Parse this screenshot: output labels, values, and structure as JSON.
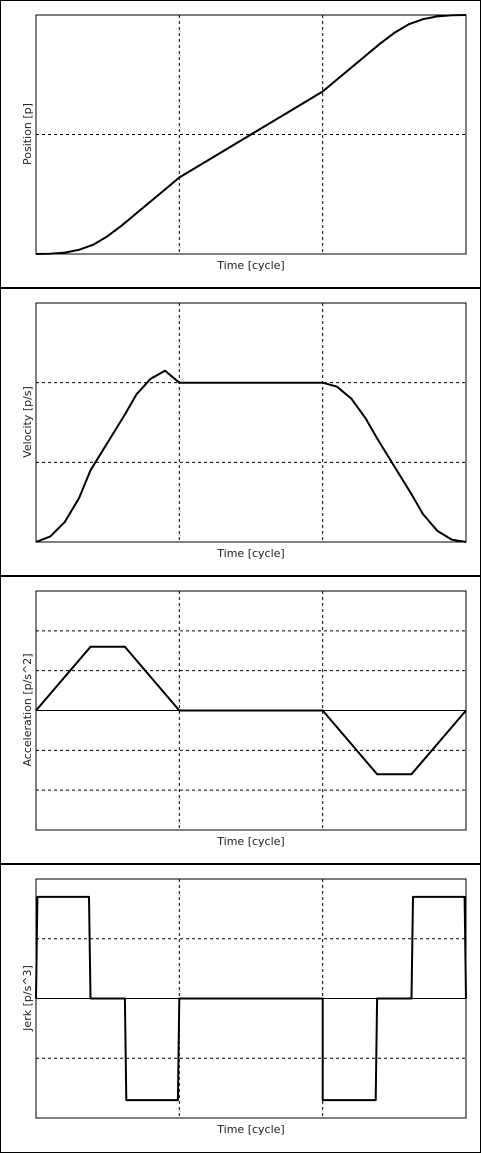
{
  "charts": [
    {
      "id": "position",
      "ylabel": "Position [p]",
      "xlabel": "Time [cycle]"
    },
    {
      "id": "velocity",
      "ylabel": "Velocity [p/s]",
      "xlabel": "Time [cycle]"
    },
    {
      "id": "acceleration",
      "ylabel": "Acceleration [p/s^2]",
      "xlabel": "Time [cycle]"
    },
    {
      "id": "jerk",
      "ylabel": "Jerk [p/s^3]",
      "xlabel": "Time [cycle]"
    }
  ],
  "chart_data": [
    {
      "type": "line",
      "xlabel": "Time [cycle]",
      "ylabel": "Position [p]",
      "xlim": [
        0,
        3
      ],
      "ylim": [
        0,
        2
      ],
      "grid": true,
      "series": [
        {
          "values": [
            [
              0,
              0
            ],
            [
              0.1,
              0.002
            ],
            [
              0.2,
              0.012
            ],
            [
              0.3,
              0.035
            ],
            [
              0.4,
              0.078
            ],
            [
              0.5,
              0.15
            ],
            [
              0.6,
              0.24
            ],
            [
              0.7,
              0.34
            ],
            [
              0.8,
              0.44
            ],
            [
              0.9,
              0.54
            ],
            [
              1.0,
              0.64
            ],
            [
              1.5,
              1.0
            ],
            [
              2.0,
              1.36
            ],
            [
              2.1,
              1.46
            ],
            [
              2.2,
              1.56
            ],
            [
              2.3,
              1.66
            ],
            [
              2.4,
              1.76
            ],
            [
              2.5,
              1.85
            ],
            [
              2.6,
              1.922
            ],
            [
              2.7,
              1.965
            ],
            [
              2.8,
              1.988
            ],
            [
              2.9,
              1.998
            ],
            [
              3.0,
              2.0
            ]
          ]
        }
      ]
    },
    {
      "type": "line",
      "xlabel": "Time [cycle]",
      "ylabel": "Velocity [p/s]",
      "xlim": [
        0,
        3
      ],
      "ylim": [
        0,
        3
      ],
      "grid": true,
      "series": [
        {
          "values": [
            [
              0,
              0
            ],
            [
              0.1,
              0.07
            ],
            [
              0.2,
              0.25
            ],
            [
              0.3,
              0.55
            ],
            [
              0.38,
              0.9
            ],
            [
              0.62,
              1.6
            ],
            [
              0.7,
              1.85
            ],
            [
              0.8,
              2.05
            ],
            [
              0.9,
              2.15
            ],
            [
              1.0,
              2.0
            ],
            [
              2.0,
              2.0
            ],
            [
              2.1,
              1.95
            ],
            [
              2.2,
              1.8
            ],
            [
              2.3,
              1.55
            ],
            [
              2.38,
              1.3
            ],
            [
              2.62,
              0.6
            ],
            [
              2.7,
              0.35
            ],
            [
              2.8,
              0.14
            ],
            [
              2.9,
              0.03
            ],
            [
              3.0,
              0
            ]
          ]
        }
      ]
    },
    {
      "type": "line",
      "xlabel": "Time [cycle]",
      "ylabel": "Acceleration [p/s^2]",
      "xlim": [
        0,
        3
      ],
      "ylim": [
        -3,
        3
      ],
      "grid": true,
      "series": [
        {
          "values": [
            [
              0,
              0
            ],
            [
              0.38,
              1.6
            ],
            [
              0.62,
              1.6
            ],
            [
              1.0,
              0
            ],
            [
              2.0,
              0
            ],
            [
              2.38,
              -1.6
            ],
            [
              2.62,
              -1.6
            ],
            [
              3.0,
              0
            ]
          ]
        }
      ]
    },
    {
      "type": "line",
      "xlabel": "Time [cycle]",
      "ylabel": "Jerk [p/s^3]",
      "xlim": [
        0,
        3
      ],
      "ylim": [
        -2,
        2
      ],
      "grid": true,
      "series": [
        {
          "values": [
            [
              0,
              0
            ],
            [
              0.01,
              1.7
            ],
            [
              0.37,
              1.7
            ],
            [
              0.38,
              0
            ],
            [
              0.62,
              0
            ],
            [
              0.63,
              -1.7
            ],
            [
              0.99,
              -1.7
            ],
            [
              1.0,
              0
            ],
            [
              2.0,
              0
            ],
            [
              2.0,
              -1.7
            ],
            [
              2.37,
              -1.7
            ],
            [
              2.38,
              0
            ],
            [
              2.62,
              0
            ],
            [
              2.63,
              1.7
            ],
            [
              2.99,
              1.7
            ],
            [
              3.0,
              0
            ]
          ]
        }
      ]
    }
  ]
}
